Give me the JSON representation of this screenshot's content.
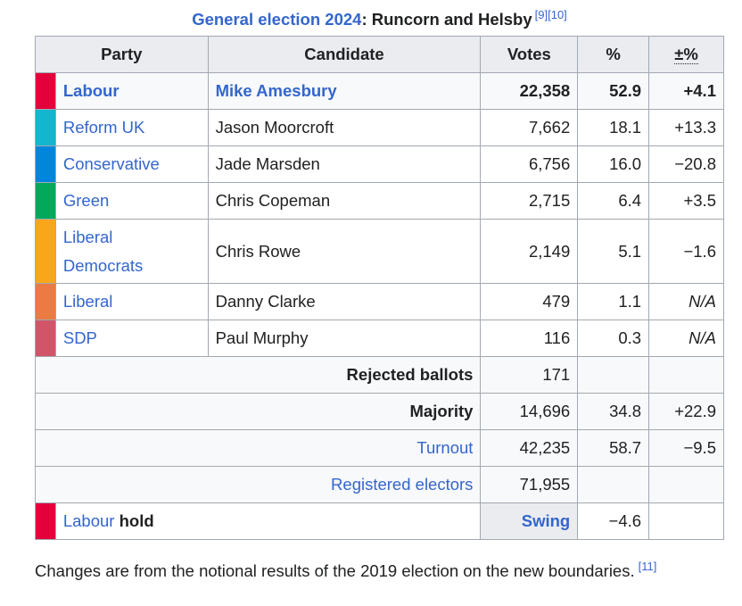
{
  "caption": {
    "link_text": "General election 2024",
    "rest_text": ": Runcorn and Helsby",
    "ref": "[9][10]"
  },
  "headers": {
    "party": "Party",
    "candidate": "Candidate",
    "votes": "Votes",
    "pct": "%",
    "change": "±%"
  },
  "candidates": [
    {
      "party": "Labour",
      "candidate": "Mike Amesbury",
      "votes": "22,358",
      "pct": "52.9",
      "change": "+4.1",
      "color": "#e4003b"
    },
    {
      "party": "Reform UK",
      "candidate": "Jason Moorcroft",
      "votes": "7,662",
      "pct": "18.1",
      "change": "+13.3",
      "color": "#12b6cf"
    },
    {
      "party": "Conservative",
      "candidate": "Jade Marsden",
      "votes": "6,756",
      "pct": "16.0",
      "change": "−20.8",
      "color": "#0087dc"
    },
    {
      "party": "Green",
      "candidate": "Chris Copeman",
      "votes": "2,715",
      "pct": "6.4",
      "change": "+3.5",
      "color": "#02a95b"
    },
    {
      "party_line1": "Liberal",
      "party_line2": "Democrats",
      "candidate": "Chris Rowe",
      "votes": "2,149",
      "pct": "5.1",
      "change": "−1.6",
      "color": "#faa61a"
    },
    {
      "party": "Liberal",
      "candidate": "Danny Clarke",
      "votes": "479",
      "pct": "1.1",
      "change": "N/A",
      "color": "#eb7a43"
    },
    {
      "party": "SDP",
      "candidate": "Paul Murphy",
      "votes": "116",
      "pct": "0.3",
      "change": "N/A",
      "color": "#d25469"
    }
  ],
  "summary": {
    "rejected": {
      "label": "Rejected ballots",
      "votes": "171"
    },
    "majority": {
      "label": "Majority",
      "votes": "14,696",
      "pct": "34.8",
      "change": "+22.9"
    },
    "turnout": {
      "label": "Turnout",
      "votes": "42,235",
      "pct": "58.7",
      "change": "−9.5"
    },
    "registered": {
      "label": "Registered electors",
      "votes": "71,955"
    },
    "hold": {
      "party": "Labour",
      "word": "hold",
      "swing_label": "Swing",
      "swing_value": "−4.6",
      "color": "#e4003b"
    }
  },
  "note": {
    "text": "Changes are from the notional results of the 2019 election on the new boundaries.",
    "ref": "[11]"
  }
}
